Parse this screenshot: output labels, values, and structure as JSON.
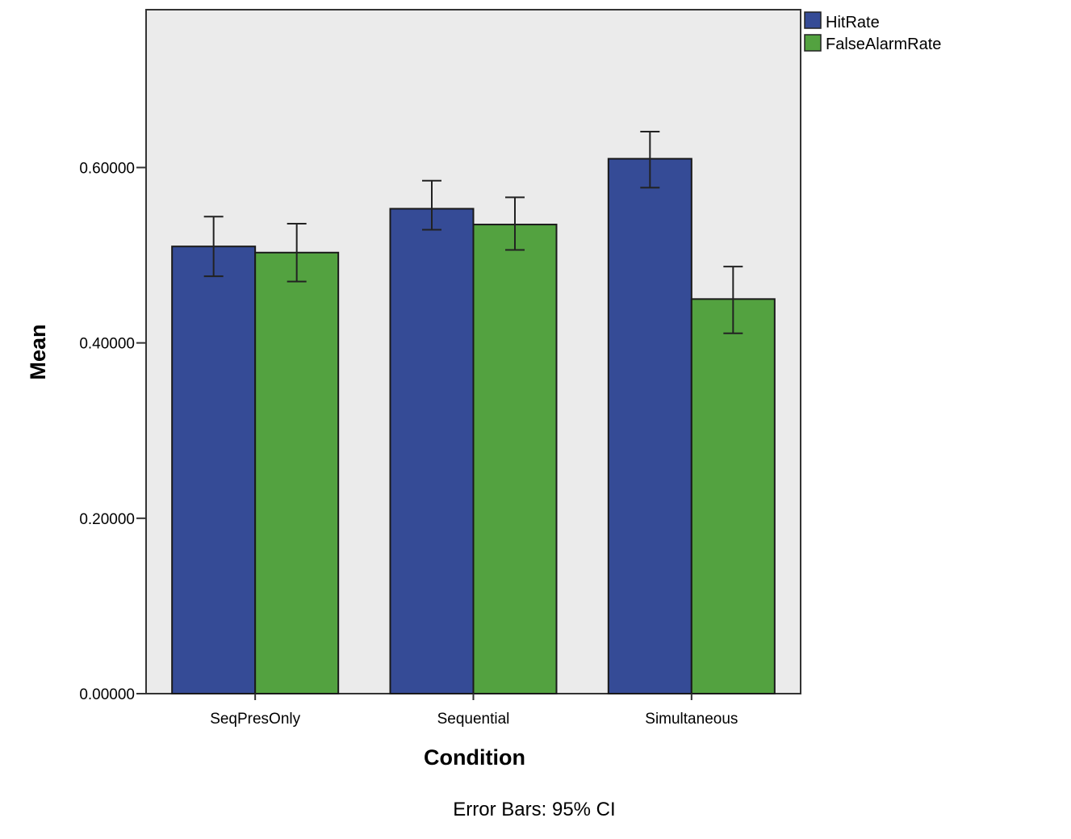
{
  "chart_data": {
    "type": "bar",
    "title": "",
    "xlabel": "Condition",
    "ylabel": "Mean",
    "ylim": [
      0,
      0.78
    ],
    "yticks": [
      0,
      0.2,
      0.4,
      0.6
    ],
    "ytick_labels": [
      "0.00000",
      "0.20000",
      "0.40000",
      "0.60000"
    ],
    "categories": [
      "SeqPresOnly",
      "Sequential",
      "Simultaneous"
    ],
    "series": [
      {
        "name": "HitRate",
        "color": "#354b96",
        "values": [
          0.51,
          0.553,
          0.61
        ],
        "ci_lower": [
          0.476,
          0.529,
          0.577
        ],
        "ci_upper": [
          0.544,
          0.585,
          0.641
        ]
      },
      {
        "name": "FalseAlarmRate",
        "color": "#53a240",
        "values": [
          0.503,
          0.535,
          0.45
        ],
        "ci_lower": [
          0.47,
          0.506,
          0.411
        ],
        "ci_upper": [
          0.536,
          0.566,
          0.487
        ]
      }
    ],
    "note": "Error Bars: 95% CI",
    "legend_position": "top-right",
    "plot_background": "#ebebeb",
    "grid": false
  }
}
